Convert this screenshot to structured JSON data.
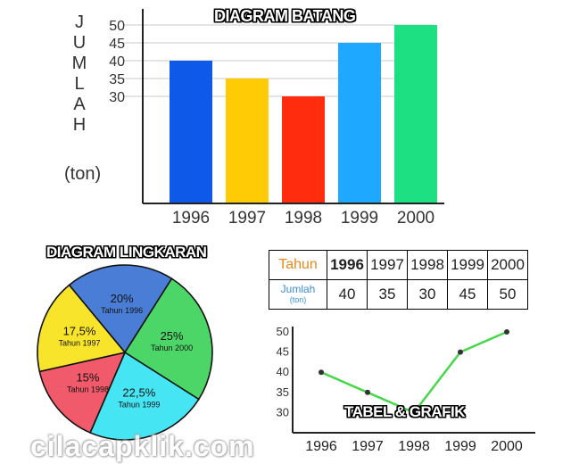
{
  "colors": {
    "bar": [
      "#0f59e8",
      "#ffcb05",
      "#ff2c0d",
      "#1fa8ff",
      "#1ce082"
    ],
    "pie": [
      "#4a7ed6",
      "#4cd667",
      "#45e5f3",
      "#f15a6a",
      "#f8e42b"
    ],
    "line": "#47d64c"
  },
  "bar_title": "DIAGRAM BATANG",
  "bar_ylabel_letters": [
    "J",
    "U",
    "M",
    "L",
    "A",
    "H"
  ],
  "bar_ylabel_unit": "(ton)",
  "pie_title": "DIAGRAM LINGKARAN",
  "line_title": "TABEL & GRAFIK",
  "table": {
    "header_label": "Tahun",
    "row_label": "Jumlah",
    "row_unit": "(ton)",
    "years": [
      "1996",
      "1997",
      "1998",
      "1999",
      "2000"
    ],
    "values": [
      "40",
      "35",
      "30",
      "45",
      "50"
    ]
  },
  "watermark": "cilacapklik.com",
  "chart_data": [
    {
      "type": "bar",
      "title": "DIAGRAM BATANG",
      "ylabel": "JUMLAH (ton)",
      "categories": [
        "1996",
        "1997",
        "1998",
        "1999",
        "2000"
      ],
      "values": [
        40,
        35,
        30,
        45,
        50
      ],
      "yticks": [
        "30",
        "35",
        "40",
        "45",
        "50"
      ],
      "ylim": [
        0,
        50
      ],
      "grid": false
    },
    {
      "type": "pie",
      "title": "DIAGRAM LINGKARAN",
      "slices": [
        {
          "pct": "20%",
          "label": "Tahun 1996",
          "value": 20
        },
        {
          "pct": "25%",
          "label": "Tahun 2000",
          "value": 25
        },
        {
          "pct": "22,5%",
          "label": "Tahun 1999",
          "value": 22.5
        },
        {
          "pct": "15%",
          "label": "Tahun 1998",
          "value": 15
        },
        {
          "pct": "17,5%",
          "label": "Tahun 1997",
          "value": 17.5
        }
      ]
    },
    {
      "type": "line",
      "title": "TABEL & GRAFIK",
      "x": [
        "1996",
        "1997",
        "1998",
        "1999",
        "2000"
      ],
      "values": [
        40,
        35,
        30,
        45,
        50
      ],
      "yticks": [
        "30",
        "35",
        "40",
        "45",
        "50"
      ],
      "ylim": [
        25,
        50
      ]
    }
  ]
}
